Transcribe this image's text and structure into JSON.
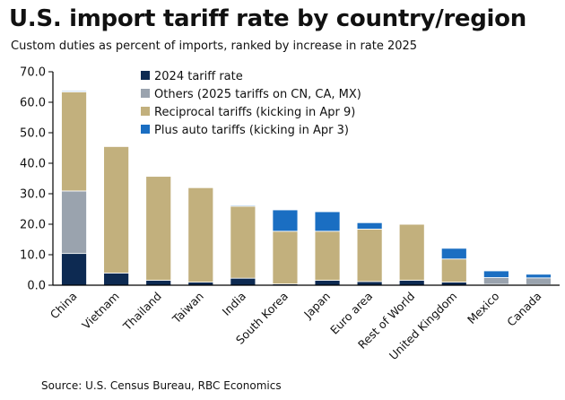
{
  "title": "U.S. import tariff rate by country/region",
  "subtitle": "Custom duties as percent of imports, ranked by increase in rate 2025",
  "source": "Source: U.S. Census Bureau, RBC Economics",
  "chart_data": {
    "type": "bar",
    "stacked": true,
    "title": "U.S. import tariff rate by country/region",
    "xlabel": "",
    "ylabel": "",
    "ylim": [
      0,
      70
    ],
    "yticks": [
      "0.0",
      "10.0",
      "20.0",
      "30.0",
      "40.0",
      "50.0",
      "60.0",
      "70.0"
    ],
    "grid": false,
    "legend_position": "top-left",
    "categories": [
      "China",
      "Vietnam",
      "Thailand",
      "Taiwan",
      "India",
      "South Korea",
      "Japan",
      "Euro area",
      "Rest of World",
      "United Kingdom",
      "Mexico",
      "Canada"
    ],
    "series": [
      {
        "name": "2024 tariff rate",
        "color": "#0d2a52",
        "values": [
          10.4,
          4.0,
          1.6,
          1.0,
          2.3,
          0.4,
          1.6,
          1.2,
          1.6,
          1.0,
          0.3,
          0.2
        ]
      },
      {
        "name": "Others (2025 tariffs on CN, CA, MX)",
        "color": "#9aa3ae",
        "values": [
          20.5,
          0,
          0,
          0,
          0,
          0,
          0,
          0,
          0,
          0,
          2.2,
          2.2
        ]
      },
      {
        "name": "Reciprocal tariffs (kicking in Apr 9)",
        "color": "#c2b07d",
        "values": [
          32.5,
          41.5,
          34.1,
          31.0,
          23.6,
          17.3,
          16.1,
          17.2,
          18.4,
          7.6,
          0,
          0
        ]
      },
      {
        "name": "Plus auto tariffs (kicking in Apr 3)",
        "color": "#1a6ec2",
        "values": [
          0.3,
          0.2,
          0.2,
          0.2,
          0.3,
          7.0,
          6.4,
          2.1,
          0.2,
          3.5,
          2.2,
          1.2
        ]
      }
    ]
  }
}
